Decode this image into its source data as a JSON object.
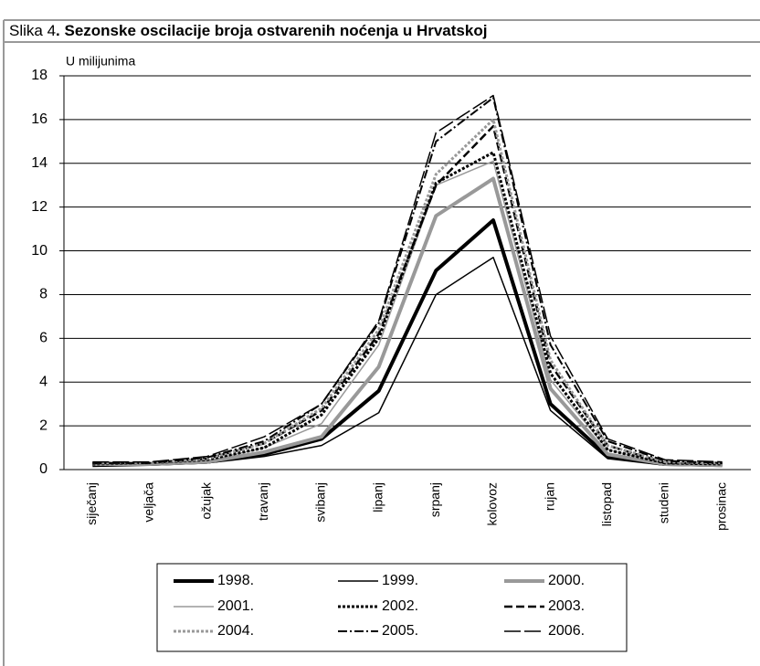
{
  "chart_data": {
    "type": "line",
    "figure_label": "Slika 4",
    "title": ". Sezonske oscilacije broja ostvarenih noćenja u Hrvatskoj",
    "y_label": "U milijunima",
    "categories": [
      "siječanj",
      "veljača",
      "ožujak",
      "travanj",
      "svibanj",
      "lipanj",
      "srpanj",
      "kolovoz",
      "rujan",
      "listopad",
      "studeni",
      "prosinac"
    ],
    "ylim": [
      0,
      18
    ],
    "yticks": [
      0,
      2,
      4,
      6,
      8,
      10,
      12,
      14,
      16,
      18
    ],
    "grid": true,
    "legend": "bottom",
    "series": [
      {
        "name": "1998.",
        "color": "#000000",
        "style": "solid-thick",
        "values": [
          0.2,
          0.25,
          0.35,
          0.7,
          1.4,
          3.6,
          9.1,
          11.4,
          3.0,
          0.6,
          0.25,
          0.2
        ]
      },
      {
        "name": "1999.",
        "color": "#000000",
        "style": "solid",
        "values": [
          0.2,
          0.2,
          0.3,
          0.6,
          1.1,
          2.6,
          8.0,
          9.7,
          2.7,
          0.5,
          0.2,
          0.2
        ]
      },
      {
        "name": "2000.",
        "color": "#999999",
        "style": "solid-thick",
        "values": [
          0.25,
          0.25,
          0.35,
          0.8,
          1.5,
          4.7,
          11.6,
          13.3,
          3.7,
          0.7,
          0.25,
          0.2
        ]
      },
      {
        "name": "2001.",
        "color": "#999999",
        "style": "solid",
        "values": [
          0.25,
          0.3,
          0.4,
          1.0,
          2.1,
          5.7,
          13.0,
          14.1,
          4.1,
          0.9,
          0.3,
          0.25
        ]
      },
      {
        "name": "2002.",
        "color": "#000000",
        "style": "dotted",
        "values": [
          0.25,
          0.3,
          0.45,
          1.0,
          2.5,
          6.0,
          13.1,
          14.5,
          4.4,
          0.9,
          0.3,
          0.25
        ]
      },
      {
        "name": "2003.",
        "color": "#000000",
        "style": "dashed",
        "values": [
          0.3,
          0.3,
          0.5,
          1.2,
          2.7,
          6.2,
          13.0,
          15.7,
          4.8,
          1.1,
          0.3,
          0.3
        ]
      },
      {
        "name": "2004.",
        "color": "#999999",
        "style": "dotted",
        "values": [
          0.3,
          0.3,
          0.5,
          1.2,
          2.8,
          6.4,
          13.5,
          16.0,
          5.0,
          1.1,
          0.35,
          0.3
        ]
      },
      {
        "name": "2005.",
        "color": "#000000",
        "style": "dash-dot",
        "values": [
          0.3,
          0.3,
          0.55,
          1.3,
          3.0,
          6.7,
          15.0,
          17.0,
          5.7,
          1.3,
          0.4,
          0.3
        ]
      },
      {
        "name": "2006.",
        "color": "#000000",
        "style": "long-dash",
        "values": [
          0.35,
          0.35,
          0.6,
          1.5,
          3.0,
          6.8,
          15.4,
          17.1,
          6.1,
          1.4,
          0.45,
          0.35
        ]
      }
    ]
  }
}
